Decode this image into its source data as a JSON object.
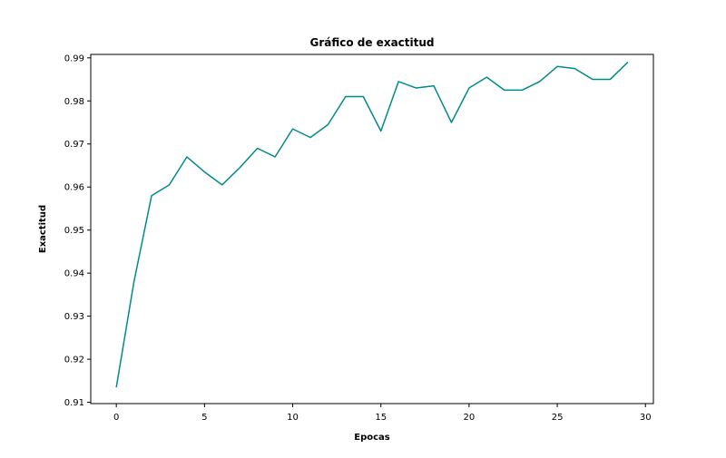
{
  "chart_data": {
    "type": "line",
    "title": "Gráfico de exactitud",
    "xlabel": "Epocas",
    "ylabel": "Exactitud",
    "xlim": [
      -1.45,
      30.45
    ],
    "ylim": [
      0.9097,
      0.9908
    ],
    "xticks": [
      0,
      5,
      10,
      15,
      20,
      25,
      30
    ],
    "yticks": [
      0.91,
      0.92,
      0.93,
      0.94,
      0.95,
      0.96,
      0.97,
      0.98,
      0.99
    ],
    "grid": false,
    "colors": {
      "series": "#008b8b"
    },
    "series": [
      {
        "x": [
          0,
          1,
          2,
          3,
          4,
          5,
          6,
          7,
          8,
          9,
          10,
          11,
          12,
          13,
          14,
          15,
          16,
          17,
          18,
          19,
          20,
          21,
          22,
          23,
          24,
          25,
          26,
          27,
          28,
          29
        ],
        "values": [
          0.9135,
          0.938,
          0.958,
          0.9605,
          0.967,
          0.9635,
          0.9605,
          0.9645,
          0.969,
          0.967,
          0.9735,
          0.9715,
          0.9745,
          0.981,
          0.981,
          0.973,
          0.9845,
          0.983,
          0.9835,
          0.975,
          0.983,
          0.9855,
          0.9825,
          0.9825,
          0.9845,
          0.988,
          0.9875,
          0.985,
          0.985,
          0.989
        ]
      }
    ]
  }
}
